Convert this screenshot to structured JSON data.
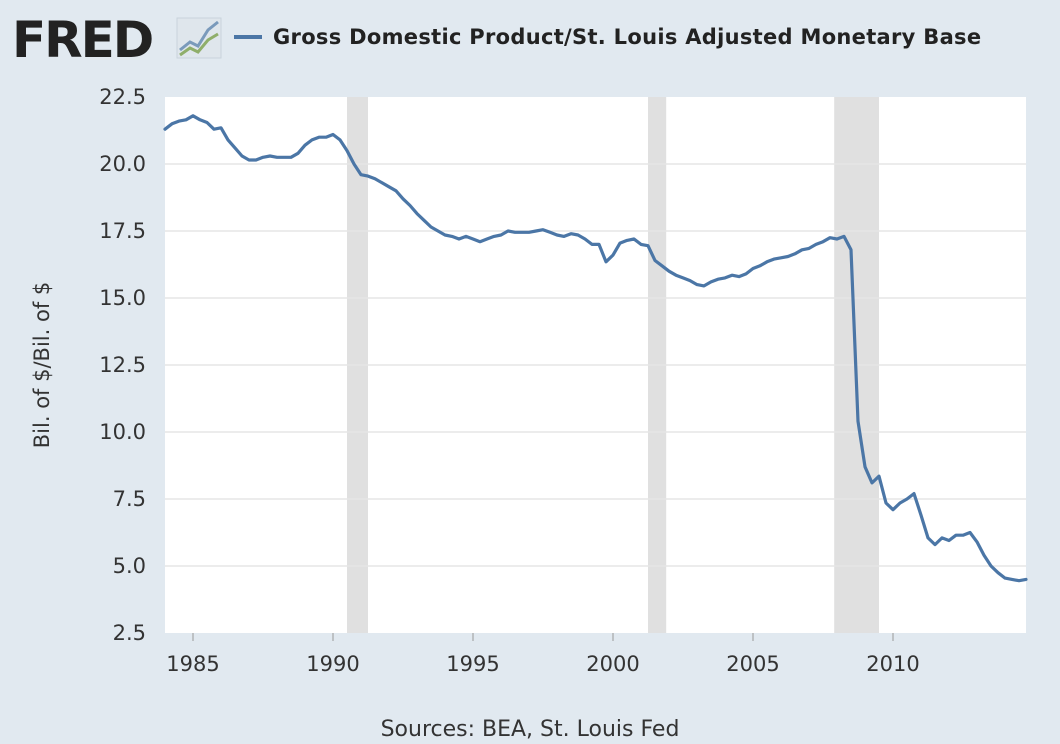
{
  "header": {
    "logo_text": "FRED",
    "logo_icon": "fred-line-graph-icon"
  },
  "footer": {
    "source": "Sources: BEA, St. Louis Fed"
  },
  "colors": {
    "line": "#4b76a6",
    "recession": "#e0e0e0",
    "grid": "#e6e6e6",
    "plot_bg": "#ffffff",
    "page_bg": "#e1e9f0"
  },
  "chart_data": {
    "type": "line",
    "title": "",
    "xlabel": "",
    "ylabel": "Bil. of $/Bil. of $",
    "xlim": [
      1984.0,
      2014.75
    ],
    "ylim": [
      2.5,
      22.5
    ],
    "y_ticks": [
      "2.5",
      "5.0",
      "7.5",
      "10.0",
      "12.5",
      "15.0",
      "17.5",
      "20.0",
      "22.5"
    ],
    "x_ticks": [
      "1985",
      "1990",
      "1995",
      "2000",
      "2005",
      "2010"
    ],
    "grid": true,
    "legend": "top",
    "recessions": [
      [
        1990.5,
        1991.25
      ],
      [
        2001.25,
        2001.9
      ],
      [
        2007.9,
        2009.5
      ]
    ],
    "series": [
      {
        "name": "Gross Domestic Product/St. Louis Adjusted Monetary Base",
        "x": [
          1984.0,
          1984.25,
          1984.5,
          1984.75,
          1985.0,
          1985.25,
          1985.5,
          1985.75,
          1986.0,
          1986.25,
          1986.5,
          1986.75,
          1987.0,
          1987.25,
          1987.5,
          1987.75,
          1988.0,
          1988.25,
          1988.5,
          1988.75,
          1989.0,
          1989.25,
          1989.5,
          1989.75,
          1990.0,
          1990.25,
          1990.5,
          1990.75,
          1991.0,
          1991.25,
          1991.5,
          1991.75,
          1992.0,
          1992.25,
          1992.5,
          1992.75,
          1993.0,
          1993.25,
          1993.5,
          1993.75,
          1994.0,
          1994.25,
          1994.5,
          1994.75,
          1995.0,
          1995.25,
          1995.5,
          1995.75,
          1996.0,
          1996.25,
          1996.5,
          1996.75,
          1997.0,
          1997.25,
          1997.5,
          1997.75,
          1998.0,
          1998.25,
          1998.5,
          1998.75,
          1999.0,
          1999.25,
          1999.5,
          1999.75,
          2000.0,
          2000.25,
          2000.5,
          2000.75,
          2001.0,
          2001.25,
          2001.5,
          2001.75,
          2002.0,
          2002.25,
          2002.5,
          2002.75,
          2003.0,
          2003.25,
          2003.5,
          2003.75,
          2004.0,
          2004.25,
          2004.5,
          2004.75,
          2005.0,
          2005.25,
          2005.5,
          2005.75,
          2006.0,
          2006.25,
          2006.5,
          2006.75,
          2007.0,
          2007.25,
          2007.5,
          2007.75,
          2008.0,
          2008.25,
          2008.5,
          2008.75,
          2009.0,
          2009.25,
          2009.5,
          2009.75,
          2010.0,
          2010.25,
          2010.5,
          2010.75,
          2011.0,
          2011.25,
          2011.5,
          2011.75,
          2012.0,
          2012.25,
          2012.5,
          2012.75,
          2013.0,
          2013.25,
          2013.5,
          2013.75,
          2014.0,
          2014.25,
          2014.5,
          2014.75
        ],
        "values": [
          21.3,
          21.5,
          21.6,
          21.65,
          21.8,
          21.65,
          21.55,
          21.3,
          21.35,
          20.9,
          20.6,
          20.3,
          20.15,
          20.15,
          20.25,
          20.3,
          20.25,
          20.25,
          20.25,
          20.4,
          20.7,
          20.9,
          21.0,
          21.0,
          21.1,
          20.9,
          20.5,
          20.0,
          19.6,
          19.55,
          19.45,
          19.3,
          19.15,
          19.0,
          18.7,
          18.45,
          18.15,
          17.9,
          17.65,
          17.5,
          17.35,
          17.3,
          17.2,
          17.3,
          17.2,
          17.1,
          17.2,
          17.3,
          17.35,
          17.5,
          17.45,
          17.45,
          17.45,
          17.5,
          17.55,
          17.45,
          17.35,
          17.3,
          17.4,
          17.35,
          17.2,
          17.0,
          17.0,
          16.35,
          16.6,
          17.05,
          17.15,
          17.2,
          17.0,
          16.95,
          16.4,
          16.2,
          16.0,
          15.85,
          15.75,
          15.65,
          15.5,
          15.45,
          15.6,
          15.7,
          15.75,
          15.85,
          15.8,
          15.9,
          16.1,
          16.2,
          16.35,
          16.45,
          16.5,
          16.55,
          16.65,
          16.8,
          16.85,
          17.0,
          17.1,
          17.25,
          17.2,
          17.3,
          16.8,
          10.4,
          8.7,
          8.1,
          8.35,
          7.35,
          7.1,
          7.35,
          7.5,
          7.7,
          6.9,
          6.05,
          5.8,
          6.05,
          5.95,
          6.15,
          6.15,
          6.25,
          5.9,
          5.4,
          5.0,
          4.75,
          4.55,
          4.5,
          4.45,
          4.5
        ]
      }
    ]
  }
}
